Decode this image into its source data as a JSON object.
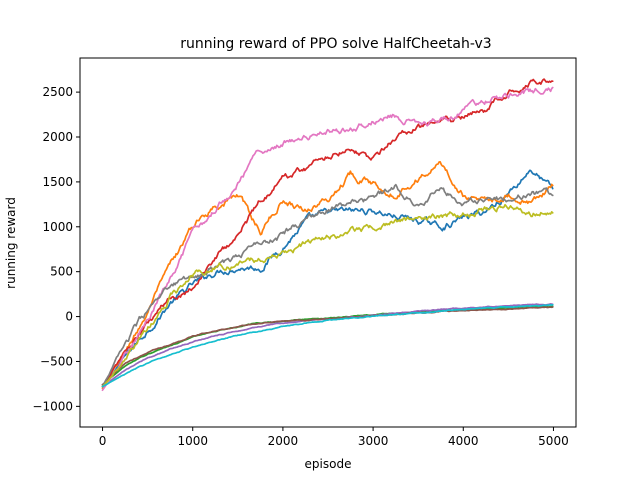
{
  "chart_data": {
    "type": "line",
    "title": "running reward of PPO solve HalfCheetah-v3",
    "xlabel": "episode",
    "ylabel": "running reward",
    "xlim": [
      -250,
      5250
    ],
    "ylim": [
      -1230,
      2880
    ],
    "xticks": [
      0,
      1000,
      2000,
      3000,
      4000,
      5000
    ],
    "yticks": [
      -1000,
      -500,
      0,
      500,
      1000,
      1500,
      2000,
      2500
    ],
    "grid": false,
    "legend": "none",
    "series": [
      {
        "color": "#1f77b4",
        "x": [
          0,
          250,
          500,
          750,
          1000,
          1250,
          1500,
          1750,
          2000,
          2250,
          2500,
          2750,
          3000,
          3250,
          3500,
          3750,
          4000,
          4250,
          4500,
          4750,
          5000
        ],
        "y": [
          -780,
          -450,
          -150,
          150,
          350,
          500,
          560,
          550,
          780,
          1050,
          1150,
          1170,
          1180,
          1120,
          1070,
          1000,
          1100,
          1170,
          1380,
          1650,
          1400
        ]
      },
      {
        "color": "#ff7f0e",
        "x": [
          0,
          250,
          500,
          750,
          1000,
          1250,
          1500,
          1750,
          2000,
          2250,
          2500,
          2750,
          3000,
          3250,
          3500,
          3750,
          4000,
          4250,
          4500,
          4750,
          5000
        ],
        "y": [
          -800,
          -400,
          50,
          550,
          1000,
          1250,
          1350,
          950,
          1300,
          1200,
          1300,
          1600,
          1480,
          1380,
          1550,
          1700,
          1350,
          1300,
          1380,
          1250,
          1480
        ]
      },
      {
        "color": "#2ca02c",
        "x": [
          0,
          250,
          500,
          750,
          1000,
          1250,
          1500,
          1750,
          2000,
          2250,
          2500,
          2750,
          3000,
          3250,
          3500,
          3750,
          4000,
          4250,
          4500,
          4750,
          5000
        ],
        "y": [
          -760,
          -550,
          -420,
          -320,
          -230,
          -160,
          -110,
          -70,
          -50,
          -30,
          -15,
          5,
          20,
          35,
          50,
          65,
          80,
          90,
          100,
          110,
          115
        ]
      },
      {
        "color": "#d62728",
        "x": [
          0,
          250,
          500,
          750,
          1000,
          1250,
          1500,
          1750,
          2000,
          2250,
          2500,
          2750,
          3000,
          3250,
          3500,
          3750,
          4000,
          4250,
          4500,
          4750,
          5000
        ],
        "y": [
          -780,
          -400,
          -100,
          200,
          350,
          650,
          900,
          1300,
          1550,
          1650,
          1800,
          1900,
          1750,
          2000,
          2100,
          2150,
          2200,
          2300,
          2500,
          2650,
          2620
        ]
      },
      {
        "color": "#9467bd",
        "x": [
          0,
          250,
          500,
          750,
          1000,
          1250,
          1500,
          1750,
          2000,
          2250,
          2500,
          2750,
          3000,
          3250,
          3500,
          3750,
          4000,
          4250,
          4500,
          4750,
          5000
        ],
        "y": [
          -780,
          -600,
          -460,
          -360,
          -280,
          -210,
          -160,
          -110,
          -75,
          -50,
          -25,
          -5,
          15,
          40,
          60,
          80,
          95,
          110,
          125,
          135,
          140
        ]
      },
      {
        "color": "#8c564b",
        "x": [
          0,
          250,
          500,
          750,
          1000,
          1250,
          1500,
          1750,
          2000,
          2250,
          2500,
          2750,
          3000,
          3250,
          3500,
          3750,
          4000,
          4250,
          4500,
          4750,
          5000
        ],
        "y": [
          -760,
          -520,
          -400,
          -310,
          -220,
          -160,
          -110,
          -70,
          -50,
          -40,
          -25,
          -10,
          5,
          25,
          40,
          55,
          65,
          75,
          85,
          95,
          100
        ]
      },
      {
        "color": "#e377c2",
        "x": [
          0,
          250,
          500,
          750,
          1000,
          1250,
          1500,
          1750,
          2000,
          2250,
          2500,
          2750,
          3000,
          3250,
          3500,
          3750,
          4000,
          4250,
          4500,
          4750,
          5000
        ],
        "y": [
          -820,
          -450,
          -50,
          400,
          900,
          1200,
          1500,
          1850,
          1950,
          2000,
          2050,
          2100,
          2200,
          2250,
          2150,
          2200,
          2300,
          2400,
          2450,
          2500,
          2550
        ]
      },
      {
        "color": "#7f7f7f",
        "x": [
          0,
          250,
          500,
          750,
          1000,
          1250,
          1500,
          1750,
          2000,
          2250,
          2500,
          2750,
          3000,
          3250,
          3500,
          3750,
          4000,
          4250,
          4500,
          4750,
          5000
        ],
        "y": [
          -780,
          -300,
          50,
          300,
          450,
          550,
          650,
          850,
          900,
          1100,
          1200,
          1250,
          1300,
          1450,
          1300,
          1400,
          1250,
          1350,
          1300,
          1400,
          1350
        ]
      },
      {
        "color": "#bcbd22",
        "x": [
          0,
          250,
          500,
          750,
          1000,
          1250,
          1500,
          1750,
          2000,
          2250,
          2500,
          2750,
          3000,
          3250,
          3500,
          3750,
          4000,
          4250,
          4500,
          4750,
          5000
        ],
        "y": [
          -780,
          -500,
          -150,
          200,
          450,
          550,
          600,
          650,
          700,
          800,
          900,
          950,
          1000,
          1050,
          1100,
          1100,
          1150,
          1200,
          1250,
          1150,
          1200
        ]
      },
      {
        "color": "#17becf",
        "x": [
          0,
          250,
          500,
          750,
          1000,
          1250,
          1500,
          1750,
          2000,
          2250,
          2500,
          2750,
          3000,
          3250,
          3500,
          3750,
          4000,
          4250,
          4500,
          4750,
          5000
        ],
        "y": [
          -780,
          -640,
          -520,
          -420,
          -340,
          -270,
          -210,
          -160,
          -110,
          -70,
          -40,
          -20,
          0,
          20,
          40,
          60,
          80,
          95,
          110,
          120,
          130
        ]
      }
    ]
  }
}
